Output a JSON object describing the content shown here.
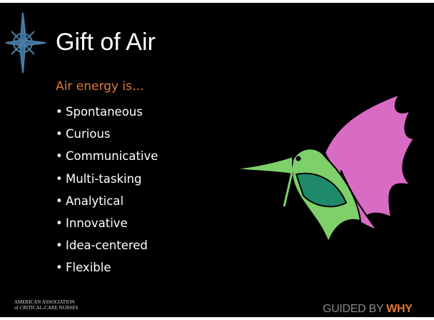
{
  "slide": {
    "title": "Gift of Air",
    "subtitle": "Air energy is…",
    "bullets": [
      "Spontaneous",
      "Curious",
      "Communicative",
      "Multi-tasking",
      "Analytical",
      "Innovative",
      "Idea-centered",
      "Flexible"
    ],
    "footer": {
      "organization": [
        "AMERICAN ASSOCIATION",
        "of CRITICAL-CARE NURSES"
      ],
      "tagline": "GUIDED BY",
      "tagline_emphasis": "WHY"
    }
  }
}
